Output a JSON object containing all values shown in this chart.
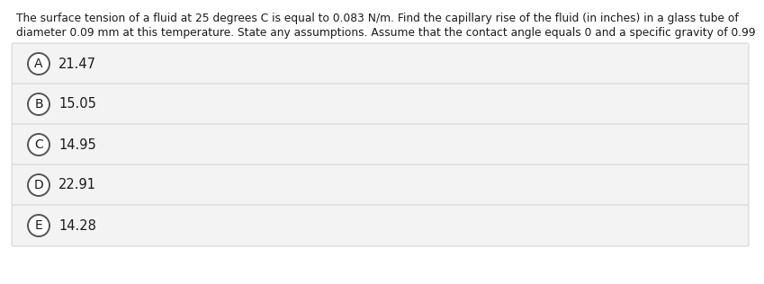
{
  "question_line1": "The surface tension of a fluid at 25 degrees C is equal to 0.083 N/m. Find the capillary rise of the fluid (in inches) in a glass tube of",
  "question_line2": "diameter 0.09 mm at this temperature. State any assumptions. Assume that the contact angle equals 0 and a specific gravity of 0.99",
  "options": [
    {
      "label": "A",
      "value": "21.47"
    },
    {
      "label": "B",
      "value": "15.05"
    },
    {
      "label": "C",
      "value": "14.95"
    },
    {
      "label": "D",
      "value": "22.91"
    },
    {
      "label": "E",
      "value": "14.28"
    }
  ],
  "background_color": "#ffffff",
  "option_box_color": "#f3f3f3",
  "option_box_border": "#cccccc",
  "text_color": "#1a1a1a",
  "circle_edge_color": "#555555",
  "circle_face_color": "#ffffff",
  "question_fontsize": 8.8,
  "option_fontsize": 10.5,
  "label_fontsize": 10
}
